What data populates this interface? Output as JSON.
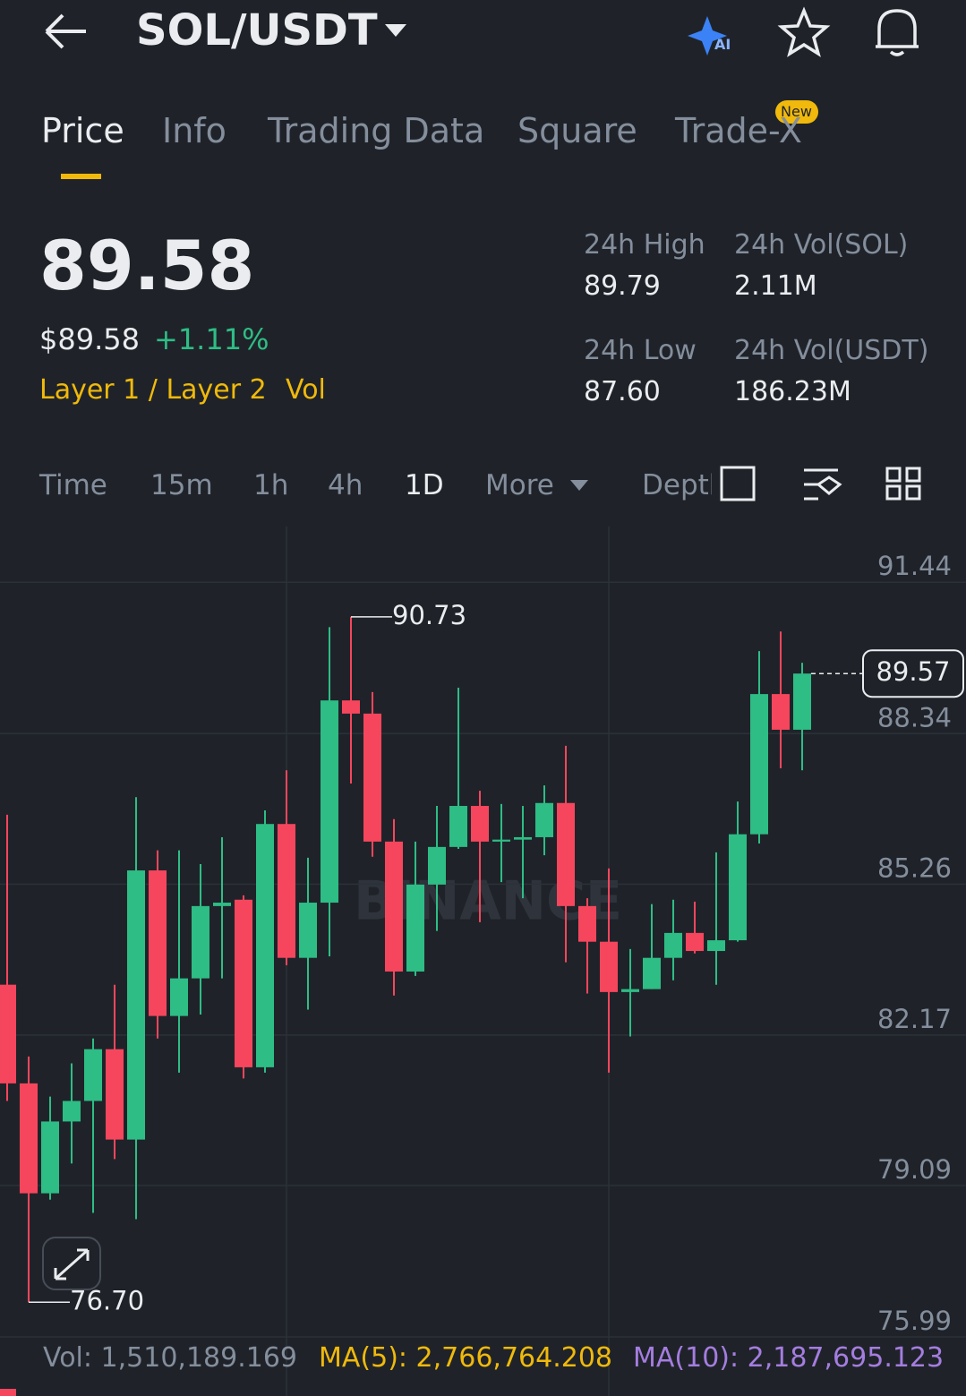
{
  "header": {
    "pair": "SOL/USDT"
  },
  "tabs": {
    "items": [
      "Price",
      "Info",
      "Trading Data",
      "Square",
      "Trade-X"
    ],
    "badge": "New"
  },
  "price": {
    "last": "89.58",
    "usd": "$89.58",
    "change": "+1.11%",
    "tags": [
      "Layer 1 / Layer 2",
      "Vol"
    ]
  },
  "stats": [
    {
      "label": "24h High",
      "value": "89.79"
    },
    {
      "label": "24h Vol(SOL)",
      "value": "2.11M"
    },
    {
      "label": "24h Low",
      "value": "87.60"
    },
    {
      "label": "24h Vol(USDT)",
      "value": "186.23M"
    }
  ],
  "intervals": [
    "Time",
    "15m",
    "1h",
    "4h",
    "1D",
    "More",
    "Depth"
  ],
  "footer": {
    "vol": "Vol: 1,510,189.169",
    "ma5": "MA(5): 2,766,764.208",
    "ma10": "MA(10): 2,187,695.123"
  },
  "chart_data": {
    "type": "candlestick",
    "watermark": "BINANCE",
    "open": [
      83.2,
      81.18,
      78.93,
      80.4,
      80.82,
      81.88,
      80.03,
      85.54,
      82.56,
      83.33,
      84.81,
      84.94,
      81.51,
      86.49,
      83.75,
      84.88,
      89.02,
      88.75,
      86.13,
      83.47,
      85.25,
      86.02,
      86.86,
      86.13,
      86.17,
      86.22,
      86.92,
      84.81,
      84.08,
      83.05,
      83.11,
      83.75,
      84.26,
      83.89,
      84.11,
      86.28,
      89.15,
      88.42
    ],
    "high": [
      86.68,
      81.73,
      80.91,
      81.59,
      82.1,
      83.2,
      87.04,
      85.95,
      85.95,
      85.67,
      86.22,
      85.03,
      86.77,
      87.59,
      85.8,
      90.52,
      90.73,
      89.19,
      86.59,
      86.13,
      86.86,
      89.28,
      87.17,
      86.9,
      86.86,
      87.28,
      88.09,
      84.97,
      85.58,
      83.93,
      84.85,
      84.94,
      84.9,
      85.91,
      86.95,
      90.03,
      90.43,
      89.79
    ],
    "low": [
      80.82,
      76.7,
      78.8,
      79.54,
      78.53,
      79.63,
      78.4,
      82.1,
      81.4,
      82.59,
      83.33,
      81.28,
      81.4,
      83.6,
      82.69,
      83.78,
      87.32,
      85.82,
      82.98,
      83.38,
      84.3,
      85.98,
      84.48,
      85.3,
      84.97,
      85.85,
      83.66,
      83.02,
      81.4,
      82.14,
      83.11,
      83.29,
      83.84,
      83.2,
      84.08,
      86.09,
      87.63,
      87.59
    ],
    "close": [
      81.18,
      78.93,
      80.4,
      80.82,
      81.88,
      80.03,
      85.54,
      82.56,
      83.33,
      84.81,
      84.88,
      81.51,
      86.49,
      83.75,
      84.88,
      89.02,
      88.75,
      86.13,
      83.47,
      85.25,
      86.02,
      86.86,
      86.13,
      86.17,
      86.22,
      86.92,
      84.81,
      84.08,
      83.05,
      83.11,
      83.75,
      84.26,
      83.89,
      84.11,
      86.28,
      89.15,
      88.42,
      89.57
    ],
    "up_color": "#2ebd85",
    "down_color": "#f6465d",
    "ylim": [
      75.99,
      92.58
    ],
    "yticks": [
      75.99,
      79.09,
      82.17,
      85.26,
      88.34,
      91.44
    ],
    "grid": true,
    "high_marker": 90.73,
    "low_marker": {
      "value": 76.7,
      "label": "76.70"
    },
    "last_price": 89.57
  }
}
